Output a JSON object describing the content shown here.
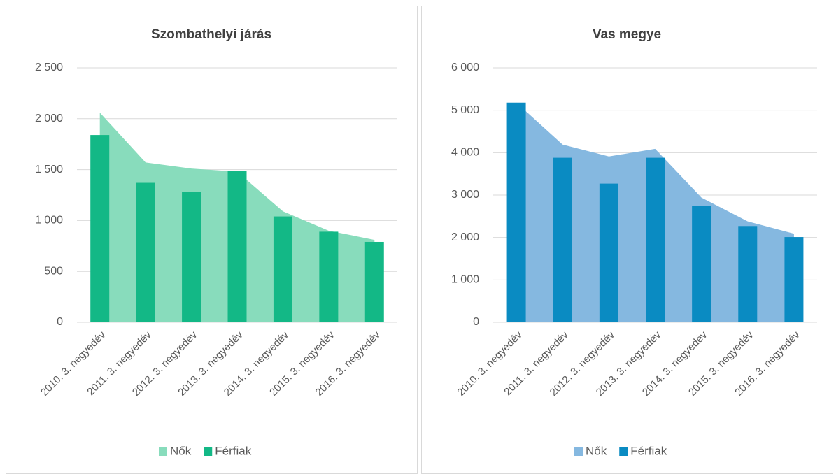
{
  "chart_data": [
    {
      "type": "combo",
      "title": "Szombathelyi járás",
      "categories": [
        "2010. 3. negyedév",
        "2011. 3. negyedév",
        "2012. 3. negyedév",
        "2013. 3. negyedév",
        "2014. 3. negyedév",
        "2015. 3. negyedév",
        "2016. 3. negyedév"
      ],
      "series": [
        {
          "name": "Nők",
          "kind": "area",
          "color": "#88dcbc",
          "values": [
            2060,
            1570,
            1510,
            1480,
            1090,
            900,
            810
          ]
        },
        {
          "name": "Férfiak",
          "kind": "bar",
          "color": "#13b886",
          "values": [
            1840,
            1370,
            1280,
            1490,
            1040,
            890,
            790
          ]
        }
      ],
      "ylim": [
        0,
        2500
      ],
      "yticks": [
        0,
        500,
        {
          "value": 1000,
          "label": "1 000"
        },
        {
          "value": 1500,
          "label": "1 500"
        },
        {
          "value": 2000,
          "label": "2 000"
        },
        {
          "value": 2500,
          "label": "2 500"
        }
      ],
      "grid": true,
      "legend": "bottom"
    },
    {
      "type": "combo",
      "title": "Vas megye",
      "categories": [
        "2010. 3. negyedév",
        "2011. 3. negyedév",
        "2012. 3. negyedév",
        "2013. 3. negyedév",
        "2014. 3. negyedév",
        "2015. 3. negyedév",
        "2016. 3. negyedév"
      ],
      "series": [
        {
          "name": "Nők",
          "kind": "area",
          "color": "#85b8e0",
          "values": [
            5180,
            4190,
            3910,
            4090,
            2940,
            2380,
            2090
          ]
        },
        {
          "name": "Férfiak",
          "kind": "bar",
          "color": "#0a8bc2",
          "values": [
            5180,
            3880,
            3270,
            3880,
            2750,
            2270,
            2010
          ]
        }
      ],
      "ylim": [
        0,
        6000
      ],
      "yticks": [
        0,
        {
          "value": 1000,
          "label": "1 000"
        },
        {
          "value": 2000,
          "label": "2 000"
        },
        {
          "value": 3000,
          "label": "3 000"
        },
        {
          "value": 4000,
          "label": "4 000"
        },
        {
          "value": 5000,
          "label": "5 000"
        },
        {
          "value": 6000,
          "label": "6 000"
        }
      ],
      "grid": true,
      "legend": "bottom"
    }
  ]
}
